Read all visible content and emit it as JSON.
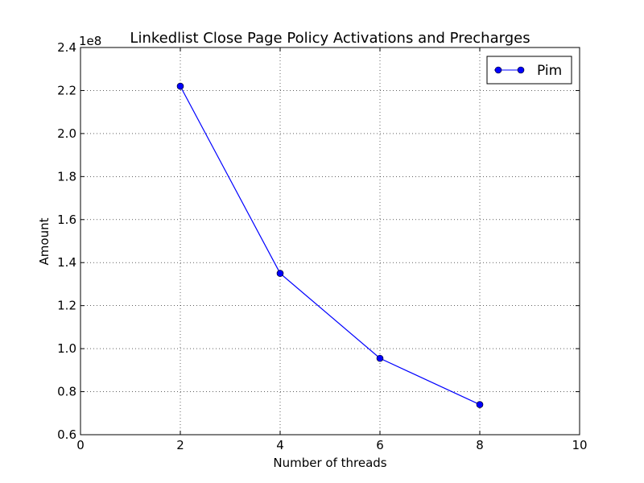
{
  "colors": {
    "background": "#ffffff",
    "series_line": "#0000ff",
    "axis": "#000000",
    "grid": "#000000"
  },
  "chart_data": {
    "type": "line",
    "title": "Linkedlist Close Page Policy Activations and Precharges",
    "xlabel": "Number of threads",
    "ylabel": "Amount",
    "y_offset_label": "1e8",
    "xlim": [
      0,
      10
    ],
    "ylim": [
      0.6,
      2.4
    ],
    "x_ticks": [
      0,
      2,
      4,
      6,
      8,
      10
    ],
    "x_tick_labels": [
      "0",
      "2",
      "4",
      "6",
      "8",
      "10"
    ],
    "y_ticks": [
      0.6,
      0.8,
      1.0,
      1.2,
      1.4,
      1.6,
      1.8,
      2.0,
      2.2,
      2.4
    ],
    "y_tick_labels": [
      "0.6",
      "0.8",
      "1.0",
      "1.2",
      "1.4",
      "1.6",
      "1.8",
      "2.0",
      "2.2",
      "2.4"
    ],
    "grid": true,
    "grid_style": "dotted",
    "legend_position": "top-right",
    "series": [
      {
        "name": "Pim",
        "color": "#0000ff",
        "marker": "circle",
        "x": [
          2,
          4,
          6,
          8
        ],
        "y": [
          2.22,
          1.35,
          0.955,
          0.74
        ]
      }
    ]
  }
}
